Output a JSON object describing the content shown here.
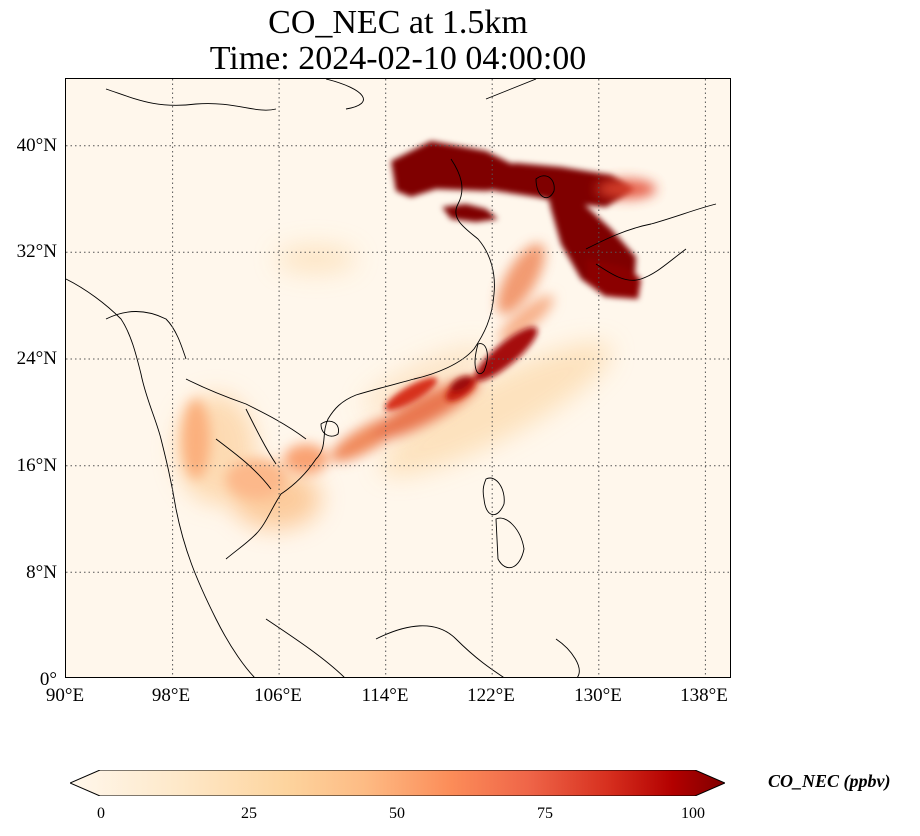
{
  "figure": {
    "title_line1": "CO_NEC at 1.5km",
    "title_line2": "Time: 2024-02-10 04:00:00"
  },
  "map": {
    "projection": "PlateCarree",
    "lon_range": [
      90,
      140
    ],
    "lat_range": [
      0,
      45
    ],
    "gridlines": true,
    "x_ticks": [
      "90°E",
      "98°E",
      "106°E",
      "114°E",
      "122°E",
      "130°E",
      "138°E"
    ],
    "y_ticks": [
      "0°",
      "8°N",
      "16°N",
      "24°N",
      "32°N",
      "40°N"
    ]
  },
  "colorbar": {
    "label": "CO_NEC (ppbv)",
    "ticks": [
      "0",
      "25",
      "50",
      "75",
      "100"
    ],
    "range": [
      0,
      100
    ],
    "colormap": "OrRd",
    "extend": "both",
    "colors": [
      "#fff7ec",
      "#fdd49e",
      "#fdbb84",
      "#fc8d59",
      "#e34a33",
      "#b30000",
      "#7f0000"
    ]
  }
}
